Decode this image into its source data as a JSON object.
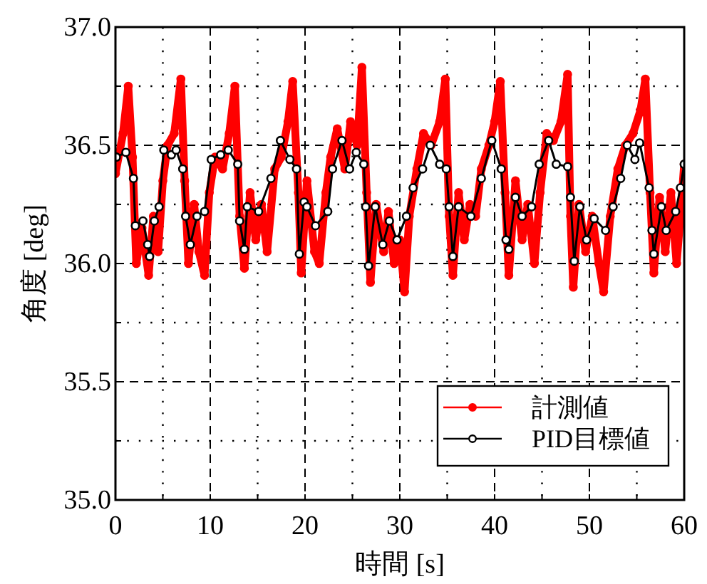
{
  "chart_data": {
    "type": "line",
    "xlabel": "時間 [s]",
    "ylabel": "角度 [deg]",
    "xlim": [
      0,
      60
    ],
    "ylim": [
      35,
      37
    ],
    "xticks": [
      0,
      {
        "value": 5,
        "label": null
      },
      10,
      {
        "value": 15,
        "label": null
      },
      20,
      {
        "value": 25,
        "label": null
      },
      30,
      {
        "value": 35,
        "label": null
      },
      40,
      {
        "value": 45,
        "label": null
      },
      50,
      {
        "value": 55,
        "label": null
      },
      60
    ],
    "yticks": [
      {
        "value": 35,
        "label": "35.0"
      },
      {
        "value": 35.25,
        "label": null
      },
      {
        "value": 35.5,
        "label": "35.5"
      },
      {
        "value": 35.75,
        "label": null
      },
      {
        "value": 36,
        "label": "36.0"
      },
      {
        "value": 36.25,
        "label": null
      },
      {
        "value": 36.5,
        "label": "36.5"
      },
      {
        "value": 36.75,
        "label": null
      },
      {
        "value": 37,
        "label": "37.0"
      }
    ],
    "grid": true,
    "legend": "bottom right",
    "marker": "circle",
    "line_style": "solid",
    "series": [
      {
        "name": "計測値",
        "color": "#ff0000",
        "x": [
          0,
          0.8,
          1.35,
          1.8,
          2.2,
          2.8,
          3.5,
          4.0,
          4.5,
          5.0,
          5.5,
          6.2,
          6.9,
          7.3,
          7.7,
          8.3,
          8.8,
          9.4,
          9.9,
          10.5,
          11.3,
          12.0,
          12.6,
          13.1,
          13.6,
          14.2,
          14.8,
          15.4,
          16.0,
          16.8,
          17.5,
          18.2,
          18.7,
          19.3,
          19.6,
          20.2,
          21.0,
          21.5,
          22.2,
          22.7,
          23.4,
          24.2,
          24.8,
          25.5,
          26.0,
          26.5,
          26.9,
          27.5,
          28.3,
          28.8,
          29.4,
          30.0,
          30.5,
          31.0,
          31.8,
          32.5,
          33.3,
          34.2,
          34.8,
          35.2,
          35.6,
          36.2,
          36.8,
          37.4,
          38.0,
          38.6,
          39.4,
          40.0,
          40.6,
          41.1,
          41.5,
          42.2,
          42.9,
          43.5,
          44.2,
          44.8,
          45.5,
          46.2,
          47.0,
          47.7,
          48.0,
          48.3,
          48.9,
          49.6,
          50.3,
          51.0,
          51.5,
          52.2,
          53.0,
          53.8,
          54.6,
          55.4,
          55.9,
          56.4,
          56.8,
          57.4,
          58.0,
          58.6,
          59.2,
          59.6,
          60.0
        ],
        "values": [
          36.38,
          36.55,
          36.75,
          36.45,
          36.0,
          36.15,
          35.95,
          36.2,
          36.05,
          36.35,
          36.5,
          36.55,
          36.78,
          36.35,
          36.0,
          36.25,
          36.05,
          35.95,
          36.3,
          36.45,
          36.4,
          36.55,
          36.75,
          36.2,
          35.98,
          36.3,
          36.1,
          36.25,
          36.05,
          36.4,
          36.45,
          36.6,
          36.77,
          36.3,
          35.96,
          36.35,
          36.05,
          36.0,
          36.3,
          36.45,
          36.57,
          36.4,
          36.6,
          36.5,
          36.83,
          36.3,
          35.92,
          36.25,
          36.05,
          36.22,
          36.0,
          36.1,
          35.88,
          36.2,
          36.4,
          36.55,
          36.5,
          36.6,
          36.78,
          36.2,
          35.95,
          36.3,
          36.1,
          36.25,
          36.2,
          36.4,
          36.5,
          36.6,
          36.77,
          36.3,
          35.95,
          36.35,
          36.1,
          36.25,
          36.0,
          36.3,
          36.55,
          36.52,
          36.6,
          36.8,
          36.2,
          35.9,
          36.25,
          36.05,
          36.2,
          36.0,
          35.88,
          36.2,
          36.4,
          36.5,
          36.55,
          36.65,
          36.78,
          36.3,
          35.96,
          36.28,
          36.05,
          36.3,
          36.0,
          36.2,
          36.42
        ]
      },
      {
        "name": "PID目標値",
        "color": "#000000",
        "x": [
          0.1,
          1.1,
          1.9,
          2.1,
          2.9,
          3.4,
          3.6,
          4.1,
          4.6,
          5.1,
          5.9,
          6.4,
          7.1,
          7.4,
          7.9,
          8.6,
          9.4,
          10.1,
          11.1,
          11.9,
          12.9,
          13.1,
          13.6,
          13.9,
          15.1,
          16.4,
          17.4,
          18.4,
          19.1,
          19.4,
          19.9,
          20.2,
          21.1,
          22.4,
          22.9,
          23.9,
          24.7,
          25.4,
          26.2,
          26.4,
          26.7,
          27.4,
          28.2,
          28.9,
          29.7,
          30.7,
          31.4,
          32.4,
          33.2,
          34.2,
          34.9,
          35.2,
          35.6,
          36.2,
          37.5,
          38.6,
          39.7,
          40.7,
          41.2,
          41.5,
          42.2,
          42.9,
          43.9,
          44.7,
          45.7,
          46.5,
          47.7,
          48.0,
          48.4,
          49.0,
          49.7,
          50.5,
          51.7,
          52.5,
          53.3,
          54.0,
          54.8,
          55.3,
          56.3,
          56.6,
          56.8,
          57.6,
          58.1,
          59.1,
          59.6,
          60.0
        ],
        "values": [
          36.45,
          36.47,
          36.36,
          36.16,
          36.18,
          36.08,
          36.03,
          36.18,
          36.24,
          36.48,
          36.46,
          36.48,
          36.4,
          36.2,
          36.08,
          36.2,
          36.22,
          36.44,
          36.46,
          36.48,
          36.42,
          36.18,
          36.06,
          36.24,
          36.22,
          36.36,
          36.52,
          36.44,
          36.4,
          36.04,
          36.26,
          36.24,
          36.16,
          36.22,
          36.4,
          36.52,
          36.4,
          36.47,
          36.42,
          36.24,
          35.99,
          36.24,
          36.08,
          36.18,
          36.1,
          36.2,
          36.32,
          36.4,
          36.5,
          36.42,
          36.4,
          36.24,
          36.03,
          36.24,
          36.2,
          36.36,
          36.52,
          36.4,
          36.1,
          36.06,
          36.28,
          36.2,
          36.24,
          36.42,
          36.52,
          36.42,
          36.41,
          36.28,
          36.01,
          36.24,
          36.1,
          36.19,
          36.14,
          36.24,
          36.36,
          36.5,
          36.44,
          36.51,
          36.32,
          36.14,
          36.04,
          36.24,
          36.14,
          36.22,
          36.32,
          36.42
        ]
      }
    ]
  }
}
